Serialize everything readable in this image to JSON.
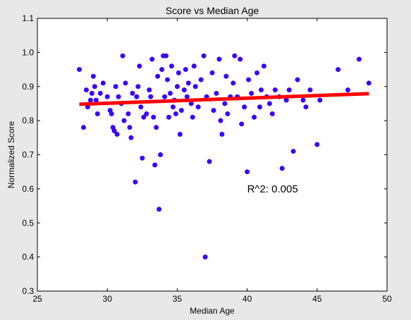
{
  "chart_data": {
    "type": "scatter",
    "title": "Score vs Median Age",
    "xlabel": "Median Age",
    "ylabel": "Normalized Score",
    "xlim": [
      25,
      50
    ],
    "ylim": [
      0.3,
      1.1
    ],
    "xticks": [
      25,
      30,
      35,
      40,
      45,
      50
    ],
    "yticks": [
      0.3,
      0.4,
      0.5,
      0.6,
      0.7,
      0.8,
      0.9,
      1.0,
      1.1
    ],
    "xtick_labels": [
      "25",
      "30",
      "35",
      "40",
      "45",
      "50"
    ],
    "ytick_labels": [
      "0.3",
      "0.4",
      "0.5",
      "0.6",
      "0.7",
      "0.8",
      "0.9",
      "1.0",
      "1.1"
    ],
    "grid": false,
    "point_color": "#3a00ff",
    "fit_color": "#ff0000",
    "annotation": {
      "text": "R^2: 0.005",
      "x": 40,
      "y": 0.6
    },
    "fit_line": {
      "x": [
        28,
        48.7
      ],
      "y": [
        0.848,
        0.879
      ]
    },
    "points": [
      [
        28.0,
        0.95
      ],
      [
        28.3,
        0.78
      ],
      [
        28.5,
        0.89
      ],
      [
        28.6,
        0.84
      ],
      [
        28.8,
        0.86
      ],
      [
        28.9,
        0.88
      ],
      [
        29.0,
        0.93
      ],
      [
        29.1,
        0.9
      ],
      [
        29.2,
        0.86
      ],
      [
        29.3,
        0.82
      ],
      [
        29.5,
        0.88
      ],
      [
        29.7,
        0.91
      ],
      [
        30.0,
        0.87
      ],
      [
        30.2,
        0.83
      ],
      [
        30.3,
        0.82
      ],
      [
        30.4,
        0.78
      ],
      [
        30.5,
        0.77
      ],
      [
        30.6,
        0.9
      ],
      [
        30.7,
        0.76
      ],
      [
        30.8,
        0.87
      ],
      [
        31.0,
        0.85
      ],
      [
        31.1,
        0.99
      ],
      [
        31.2,
        0.8
      ],
      [
        31.3,
        0.91
      ],
      [
        31.5,
        0.82
      ],
      [
        31.6,
        0.78
      ],
      [
        31.7,
        0.75
      ],
      [
        31.8,
        0.88
      ],
      [
        32.0,
        0.62
      ],
      [
        32.1,
        0.87
      ],
      [
        32.2,
        0.9
      ],
      [
        32.3,
        0.96
      ],
      [
        32.4,
        0.84
      ],
      [
        32.5,
        0.69
      ],
      [
        32.6,
        0.81
      ],
      [
        32.8,
        0.82
      ],
      [
        33.0,
        0.89
      ],
      [
        33.1,
        0.87
      ],
      [
        33.2,
        0.98
      ],
      [
        33.3,
        0.81
      ],
      [
        33.4,
        0.67
      ],
      [
        33.5,
        0.78
      ],
      [
        33.6,
        0.93
      ],
      [
        33.7,
        0.54
      ],
      [
        33.8,
        0.7
      ],
      [
        33.9,
        0.95
      ],
      [
        34.0,
        0.99
      ],
      [
        34.1,
        0.87
      ],
      [
        34.2,
        0.99
      ],
      [
        34.3,
        0.92
      ],
      [
        34.4,
        0.81
      ],
      [
        34.5,
        0.88
      ],
      [
        34.6,
        0.96
      ],
      [
        34.7,
        0.84
      ],
      [
        34.8,
        0.86
      ],
      [
        34.9,
        0.82
      ],
      [
        35.0,
        0.9
      ],
      [
        35.1,
        0.94
      ],
      [
        35.2,
        0.76
      ],
      [
        35.3,
        0.83
      ],
      [
        35.5,
        0.89
      ],
      [
        35.6,
        0.95
      ],
      [
        35.7,
        0.87
      ],
      [
        35.8,
        0.91
      ],
      [
        36.0,
        0.85
      ],
      [
        36.1,
        0.81
      ],
      [
        36.2,
        0.96
      ],
      [
        36.3,
        0.9
      ],
      [
        36.5,
        0.84
      ],
      [
        36.7,
        0.92
      ],
      [
        36.9,
        0.99
      ],
      [
        37.0,
        0.4
      ],
      [
        37.1,
        0.87
      ],
      [
        37.3,
        0.68
      ],
      [
        37.5,
        0.94
      ],
      [
        37.6,
        0.83
      ],
      [
        37.8,
        0.88
      ],
      [
        38.0,
        0.98
      ],
      [
        38.1,
        0.8
      ],
      [
        38.2,
        0.76
      ],
      [
        38.4,
        0.85
      ],
      [
        38.5,
        0.93
      ],
      [
        38.6,
        0.82
      ],
      [
        38.8,
        0.87
      ],
      [
        39.0,
        0.91
      ],
      [
        39.1,
        0.99
      ],
      [
        39.3,
        0.87
      ],
      [
        39.5,
        0.98
      ],
      [
        39.6,
        0.79
      ],
      [
        39.8,
        0.84
      ],
      [
        40.0,
        0.65
      ],
      [
        40.1,
        0.92
      ],
      [
        40.3,
        0.88
      ],
      [
        40.5,
        0.81
      ],
      [
        40.7,
        0.94
      ],
      [
        40.9,
        0.84
      ],
      [
        41.0,
        0.89
      ],
      [
        41.2,
        0.96
      ],
      [
        41.4,
        0.87
      ],
      [
        41.6,
        0.85
      ],
      [
        41.8,
        0.82
      ],
      [
        42.0,
        0.89
      ],
      [
        42.3,
        0.87
      ],
      [
        42.5,
        0.66
      ],
      [
        42.8,
        0.86
      ],
      [
        43.0,
        0.89
      ],
      [
        43.3,
        0.71
      ],
      [
        43.6,
        0.92
      ],
      [
        44.0,
        0.86
      ],
      [
        44.2,
        0.84
      ],
      [
        44.5,
        0.89
      ],
      [
        45.0,
        0.73
      ],
      [
        45.2,
        0.86
      ],
      [
        46.5,
        0.95
      ],
      [
        47.2,
        0.89
      ],
      [
        48.0,
        0.98
      ],
      [
        48.7,
        0.91
      ]
    ]
  }
}
